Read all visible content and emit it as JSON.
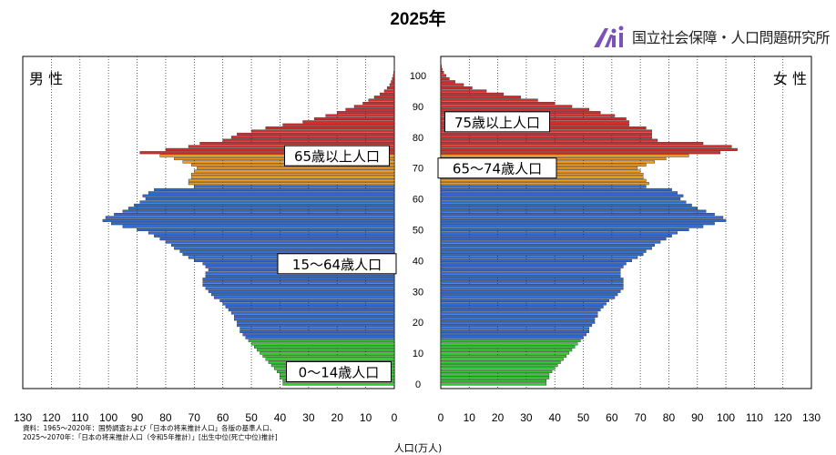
{
  "title": "2025年",
  "organization": {
    "name": "国立社会保障・人口問題研究所",
    "logo_icon": "ipss-logo-icon"
  },
  "source_lines": [
    "資料：1965〜2020年：国勢調査および「日本の将来推計人口」各版の基準人口、",
    "2025〜2070年：「日本の将来推計人口（令和5年推計）」[出生中位(死亡中位)推計]"
  ],
  "chart_data": {
    "type": "bar",
    "orientation": "horizontal-population-pyramid",
    "xlabel": "人口(万人)",
    "x_ticks_left": [
      130,
      120,
      110,
      100,
      90,
      80,
      70,
      60,
      50,
      40,
      30,
      20,
      10,
      0
    ],
    "x_ticks_right": [
      0,
      10,
      20,
      30,
      40,
      50,
      60,
      70,
      80,
      90,
      100,
      110,
      120,
      130
    ],
    "xlim": [
      0,
      130
    ],
    "age_ticks": [
      0,
      10,
      20,
      30,
      40,
      50,
      60,
      70,
      80,
      90,
      100
    ],
    "age_range": [
      0,
      105
    ],
    "grid": "dotted vertical every 10",
    "male_label": "男 性",
    "female_label": "女 性",
    "groups": [
      {
        "name": "0〜14歳人口",
        "min_age": 0,
        "max_age": 14,
        "color": "#33cc33"
      },
      {
        "name": "15〜64歳人口",
        "min_age": 15,
        "max_age": 64,
        "color": "#2f6cd6"
      },
      {
        "name": "65〜74歳人口",
        "min_age": 65,
        "max_age": 74,
        "color": "#ee9a1c"
      },
      {
        "name": "75歳以上人口",
        "min_age": 75,
        "max_age": 105,
        "color": "#d62e2e"
      }
    ],
    "annotations": [
      {
        "text": "0〜14歳人口",
        "side": "male",
        "age": 4
      },
      {
        "text": "15〜64歳人口",
        "side": "male",
        "age": 39
      },
      {
        "text": "65歳以上人口",
        "side": "male",
        "age": 74
      },
      {
        "text": "65〜74歳人口",
        "side": "female",
        "age": 70
      },
      {
        "text": "75歳以上人口",
        "side": "female",
        "age": 85
      }
    ],
    "male": [
      39,
      39,
      40,
      40,
      41,
      42,
      43,
      44,
      45,
      46,
      47,
      48,
      49,
      50,
      51,
      52,
      53,
      54,
      54,
      55,
      55,
      56,
      56,
      57,
      58,
      59,
      60,
      61,
      63,
      64,
      65,
      66,
      67,
      67,
      67,
      66,
      66,
      65,
      66,
      67,
      70,
      72,
      74,
      75,
      77,
      78,
      80,
      82,
      84,
      86,
      90,
      95,
      99,
      102,
      101,
      98,
      95,
      93,
      91,
      89,
      87,
      88,
      86,
      84,
      70,
      72,
      72,
      71,
      71,
      70,
      69,
      71,
      74,
      77,
      82,
      89,
      80,
      72,
      68,
      60,
      57,
      55,
      50,
      45,
      39,
      32,
      28,
      24,
      20,
      17,
      14,
      11,
      9,
      7,
      5,
      3.5,
      2.5,
      1.6,
      1.1,
      0.7,
      0.4,
      0.2,
      0.1,
      0.05,
      0.02,
      0.01
    ],
    "female": [
      37,
      37,
      38,
      38,
      39,
      40,
      41,
      42,
      43,
      44,
      45,
      46,
      47,
      48,
      49,
      50,
      51,
      52,
      52,
      53,
      54,
      54,
      55,
      55,
      56,
      57,
      58,
      59,
      61,
      62,
      63,
      64,
      64,
      64,
      64,
      63,
      63,
      63,
      64,
      65,
      67,
      69,
      71,
      72,
      74,
      75,
      77,
      79,
      81,
      83,
      87,
      92,
      96,
      100,
      99,
      96,
      93,
      90,
      88,
      86,
      84,
      85,
      83,
      81,
      72,
      73,
      72,
      71,
      71,
      70,
      69,
      72,
      75,
      79,
      87,
      98,
      104,
      102,
      92,
      76,
      74,
      74,
      74,
      72,
      66,
      66,
      65,
      61,
      56,
      52,
      46,
      40,
      34,
      28,
      22,
      16,
      11,
      8,
      5,
      3,
      1.8,
      1.0,
      0.5,
      0.25,
      0.1,
      0.05
    ]
  }
}
